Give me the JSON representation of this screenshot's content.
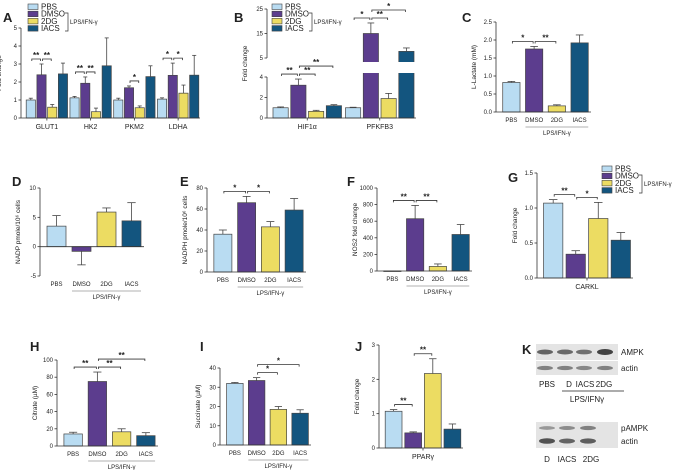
{
  "conditions": [
    "PBS",
    "DMSO",
    "2DG",
    "IACS"
  ],
  "colors": {
    "PBS": "#b9dcf2",
    "DMSO": "#5c3d8e",
    "2DG": "#ecdc62",
    "IACS": "#13557f",
    "stroke": "#444444"
  },
  "treatment_label": "LPS/IFN-γ",
  "chart_data": [
    {
      "panel": "A",
      "type": "bar",
      "grouped": true,
      "ylabel": "Fold change",
      "ylim": [
        0,
        5
      ],
      "yticks": [
        "0",
        "1",
        "2",
        "3",
        "4",
        "5"
      ],
      "legend": true,
      "categories": [
        "GLUT1",
        "HK2",
        "PKM2",
        "LDHA"
      ],
      "series": [
        {
          "name": "PBS",
          "values": [
            1.0,
            1.12,
            1.0,
            1.05
          ],
          "errors": [
            0.1,
            0.08,
            0.1,
            0.07
          ]
        },
        {
          "name": "DMSO",
          "values": [
            2.4,
            1.93,
            1.68,
            2.37
          ],
          "errors": [
            0.6,
            0.35,
            0.1,
            0.68
          ]
        },
        {
          "name": "2DG",
          "values": [
            0.6,
            0.35,
            0.57,
            1.38
          ],
          "errors": [
            0.15,
            0.2,
            0.1,
            0.45
          ]
        },
        {
          "name": "IACS",
          "values": [
            2.45,
            2.9,
            2.3,
            2.38
          ],
          "errors": [
            0.6,
            1.55,
            0.6,
            1.1
          ]
        }
      ],
      "significance": [
        {
          "group": 0,
          "from": 0,
          "to": 1,
          "label": "**",
          "level": 0
        },
        {
          "group": 0,
          "from": 1,
          "to": 2,
          "label": "**",
          "level": 0
        },
        {
          "group": 1,
          "from": 0,
          "to": 1,
          "label": "**",
          "level": 0
        },
        {
          "group": 1,
          "from": 1,
          "to": 2,
          "label": "**",
          "level": 0
        },
        {
          "group": 2,
          "from": 1,
          "to": 2,
          "label": "*",
          "level": 0
        },
        {
          "group": 3,
          "from": 0,
          "to": 1,
          "label": "*",
          "level": 0
        },
        {
          "group": 3,
          "from": 1,
          "to": 2,
          "label": "*",
          "level": 0
        }
      ]
    },
    {
      "panel": "B",
      "type": "bar",
      "grouped": true,
      "ylabel": "Fold change",
      "ylim": [
        0,
        25
      ],
      "axis_break": [
        4,
        5
      ],
      "yticks": [
        "0",
        "2",
        "4",
        "5",
        "15",
        "25"
      ],
      "legend": true,
      "categories": [
        "HIF1α",
        "PFKFB3"
      ],
      "series": [
        {
          "name": "PBS",
          "values": [
            1.0,
            1.0
          ],
          "errors": [
            0.08,
            0.05
          ]
        },
        {
          "name": "DMSO",
          "values": [
            3.2,
            15.0
          ],
          "errors": [
            0.6,
            4.3
          ]
        },
        {
          "name": "2DG",
          "values": [
            0.65,
            1.9
          ],
          "errors": [
            0.1,
            0.5
          ]
        },
        {
          "name": "IACS",
          "values": [
            1.2,
            7.7
          ],
          "errors": [
            0.1,
            1.4
          ]
        }
      ],
      "significance": [
        {
          "group": 0,
          "from": 0,
          "to": 1,
          "label": "**",
          "level": 0
        },
        {
          "group": 0,
          "from": 1,
          "to": 2,
          "label": "**",
          "level": 0
        },
        {
          "group": 0,
          "from": 1,
          "to": 3,
          "label": "**",
          "level": 1
        },
        {
          "group": 1,
          "from": 0,
          "to": 1,
          "label": "*",
          "level": 0
        },
        {
          "group": 1,
          "from": 1,
          "to": 2,
          "label": "**",
          "level": 0
        },
        {
          "group": 1,
          "from": 1,
          "to": 3,
          "label": "*",
          "level": 1
        }
      ]
    },
    {
      "panel": "C",
      "type": "bar",
      "grouped": false,
      "ylabel": "L-Lactate (mM)",
      "ylim": [
        0,
        2.5
      ],
      "yticks": [
        "0.0",
        "0.5",
        "1.0",
        "1.5",
        "2.0",
        "2.5"
      ],
      "values": [
        0.82,
        1.75,
        0.17,
        1.92
      ],
      "errors": [
        0.03,
        0.07,
        0.03,
        0.22
      ],
      "significance": [
        {
          "from": 0,
          "to": 1,
          "label": "*",
          "level": 0
        },
        {
          "from": 1,
          "to": 2,
          "label": "**",
          "level": 0
        }
      ]
    },
    {
      "panel": "D",
      "type": "bar",
      "grouped": false,
      "ylabel": "NADP pmole/10⁶ cells",
      "ylim": [
        -5,
        10
      ],
      "yticks": [
        "-5",
        "0",
        "5",
        "10"
      ],
      "values": [
        3.5,
        -0.8,
        5.9,
        4.4
      ],
      "errors": [
        1.8,
        2.3,
        0.7,
        3.1
      ],
      "significance": []
    },
    {
      "panel": "E",
      "type": "bar",
      "grouped": false,
      "ylabel": "NADPH pmole/10⁶ cells",
      "ylim": [
        0,
        80
      ],
      "yticks": [
        "0",
        "20",
        "40",
        "60",
        "80"
      ],
      "values": [
        36,
        66,
        43,
        59
      ],
      "errors": [
        4,
        6,
        5,
        11
      ],
      "significance": [
        {
          "from": 0,
          "to": 1,
          "label": "*",
          "level": 0
        },
        {
          "from": 1,
          "to": 2,
          "label": "*",
          "level": 0
        }
      ]
    },
    {
      "panel": "F",
      "type": "bar",
      "grouped": false,
      "ylabel": "NOS2 fold change",
      "ylim": [
        0,
        1000
      ],
      "yticks": [
        "0",
        "200",
        "400",
        "600",
        "800",
        "1000"
      ],
      "values": [
        1,
        630,
        55,
        440
      ],
      "errors": [
        0,
        160,
        30,
        120
      ],
      "significance": [
        {
          "from": 0,
          "to": 1,
          "label": "**",
          "level": 0
        },
        {
          "from": 1,
          "to": 2,
          "label": "**",
          "level": 0
        }
      ]
    },
    {
      "panel": "G",
      "type": "bar",
      "grouped": true,
      "ylabel": "Fold change",
      "ylim": [
        0,
        1.5
      ],
      "yticks": [
        "0.0",
        "0.5",
        "1.0",
        "1.5"
      ],
      "legend": true,
      "categories": [
        "CARKL"
      ],
      "series": [
        {
          "name": "PBS",
          "values": [
            1.07
          ],
          "errors": [
            0.05
          ]
        },
        {
          "name": "DMSO",
          "values": [
            0.34
          ],
          "errors": [
            0.05
          ]
        },
        {
          "name": "2DG",
          "values": [
            0.85
          ],
          "errors": [
            0.23
          ]
        },
        {
          "name": "IACS",
          "values": [
            0.54
          ],
          "errors": [
            0.11
          ]
        }
      ],
      "significance": [
        {
          "group": 0,
          "from": 0,
          "to": 1,
          "label": "**",
          "level": 0
        },
        {
          "group": 0,
          "from": 1,
          "to": 2,
          "label": "*",
          "level": 0
        }
      ]
    },
    {
      "panel": "H",
      "type": "bar",
      "grouped": false,
      "ylabel": "Citrate (µM)",
      "ylim": [
        0,
        100
      ],
      "yticks": [
        "0",
        "20",
        "40",
        "60",
        "80",
        "100"
      ],
      "values": [
        14,
        75,
        16.5,
        12
      ],
      "errors": [
        2,
        11,
        3.5,
        3.5
      ],
      "significance": [
        {
          "from": 0,
          "to": 1,
          "label": "**",
          "level": 0
        },
        {
          "from": 1,
          "to": 2,
          "label": "**",
          "level": 0
        },
        {
          "from": 1,
          "to": 3,
          "label": "**",
          "level": 1
        }
      ]
    },
    {
      "panel": "I",
      "type": "bar",
      "grouped": false,
      "ylabel": "Succinate (µM)",
      "ylim": [
        0,
        40
      ],
      "yticks": [
        "0",
        "10",
        "20",
        "30",
        "40"
      ],
      "values": [
        32,
        33.5,
        18.5,
        16.5
      ],
      "errors": [
        0.5,
        1.5,
        1.5,
        1.8
      ],
      "significance": [
        {
          "from": 1,
          "to": 2,
          "label": "*",
          "level": 0
        },
        {
          "from": 1,
          "to": 3,
          "label": "*",
          "level": 1
        }
      ]
    },
    {
      "panel": "J",
      "type": "bar",
      "grouped": true,
      "ylabel": "Fold change",
      "ylim": [
        0,
        3
      ],
      "yticks": [
        "0",
        "1",
        "2",
        "3"
      ],
      "categories": [
        "PPARγ"
      ],
      "series": [
        {
          "name": "PBS",
          "values": [
            1.07
          ],
          "errors": [
            0.05
          ]
        },
        {
          "name": "DMSO",
          "values": [
            0.44
          ],
          "errors": [
            0.03
          ]
        },
        {
          "name": "2DG",
          "values": [
            2.17
          ],
          "errors": [
            0.43
          ]
        },
        {
          "name": "IACS",
          "values": [
            0.55
          ],
          "errors": [
            0.15
          ]
        }
      ],
      "significance": [
        {
          "group": 0,
          "from": 0,
          "to": 1,
          "label": "**",
          "level": 0
        },
        {
          "group": 0,
          "from": 1,
          "to": 2,
          "label": "**",
          "level": 0
        }
      ]
    }
  ],
  "western_blot": {
    "panel": "K",
    "top": {
      "bands": [
        "AMPK",
        "actin"
      ],
      "lanes": [
        "PBS",
        "D",
        "IACS",
        "2DG"
      ],
      "group_label": "LPS/IFNγ"
    },
    "bottom": {
      "bands": [
        "pAMPK",
        "actin"
      ],
      "lanes": [
        "D",
        "IACS",
        "2DG"
      ]
    }
  }
}
